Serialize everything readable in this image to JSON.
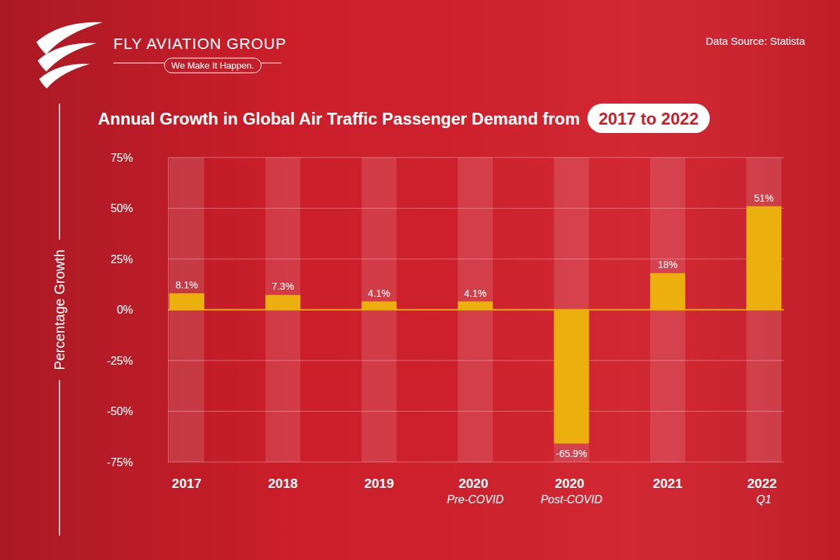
{
  "header": {
    "brand": "FLY AVIATION GROUP",
    "tagline": "We Make It Happen.",
    "source": "Data Source: Statista"
  },
  "chart_data": {
    "type": "bar",
    "title": "Annual Growth in Global Air Traffic Passenger Demand from 2017 to 2022",
    "y_label": "Percentage Growth",
    "categories": [
      "2017",
      "2018",
      "2019",
      "2020 Pre-COVID",
      "2020 Post-COVID",
      "2021",
      "2022 Q1"
    ],
    "values": [
      8.1,
      7.3,
      4.1,
      4.1,
      -65.9,
      18,
      51
    ],
    "value_labels": [
      "8.1%",
      "7.3%",
      "4.1%",
      "4.1%",
      "-65.9%",
      "18%",
      "51%"
    ],
    "color": "#ecb00e",
    "ylim": [
      -75,
      75
    ],
    "yticks": [
      {
        "value": -75,
        "label": "-75%"
      },
      {
        "value": -50,
        "label": "-50%"
      },
      {
        "value": -25,
        "label": "-25%"
      },
      {
        "value": 0,
        "label": "0%"
      },
      {
        "value": 25,
        "label": "25%"
      },
      {
        "value": 50,
        "label": "50%"
      },
      {
        "value": 75,
        "label": "75%"
      }
    ],
    "grid": true,
    "data_labels": true
  }
}
